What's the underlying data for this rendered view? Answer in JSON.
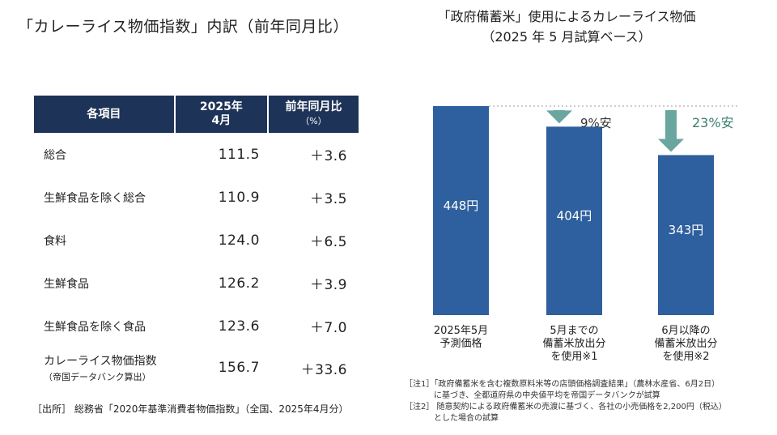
{
  "left": {
    "title": "「カレーライス物価指数」内訳（前年同月比）",
    "headers": {
      "item": "各項目",
      "month_line1": "2025年",
      "month_line2": "4月",
      "yoy_line1": "前年同月比",
      "yoy_line2": "（%）"
    },
    "rows": [
      {
        "name": "総合",
        "value": "111.5",
        "change": "＋3.6"
      },
      {
        "name": "生鮮食品を除く総合",
        "value": "110.9",
        "change": "＋3.5"
      },
      {
        "name": "食料",
        "value": "124.0",
        "change": "＋6.5"
      },
      {
        "name": "生鮮食品",
        "value": "126.2",
        "change": "＋3.9"
      },
      {
        "name": "生鮮食品を除く食品",
        "value": "123.6",
        "change": "＋7.0"
      },
      {
        "name": "カレーライス物価指数",
        "name_sub": "（帝国データバンク算出）",
        "value": "156.7",
        "change": "＋33.6"
      }
    ],
    "source": "［出所］ 総務省「2020年基準消費者物価指数」（全国、2025年4月分）"
  },
  "right": {
    "title_line1": "「政府備蓄米」使用によるカレーライス物価",
    "title_line2": "（2025 年 5 月試算ベース）",
    "notes": [
      "［注1］「政府備蓄米を含む複数原料米等の店頭価格調査結果」（農林水産省、6月2日）",
      "に基づき、全都道府県の中央値平均を帝国データバンクが試算",
      "［注2］ 随意契約による政府備蓄米の売渡に基づく、各社の小売価格を2,200円（税込）",
      "とした場合の試算"
    ]
  },
  "colors": {
    "bar": "#2e5f9e",
    "arrow": "#6aa6a0",
    "header": "#1e3358",
    "discount_text": "#3b7d6e"
  },
  "chart_data": {
    "type": "bar",
    "categories": [
      [
        "2025年5月",
        "予測価格"
      ],
      [
        "5月までの",
        "備蓄米放出分",
        "を使用※1"
      ],
      [
        "6月以降の",
        "備蓄米放出分",
        "を使用※2"
      ]
    ],
    "values": [
      448,
      404,
      343
    ],
    "value_labels": [
      "448円",
      "404円",
      "343円"
    ],
    "discounts": [
      null,
      "9%安",
      "23%安"
    ],
    "ylim": [
      0,
      448
    ],
    "reference_line": 448
  }
}
